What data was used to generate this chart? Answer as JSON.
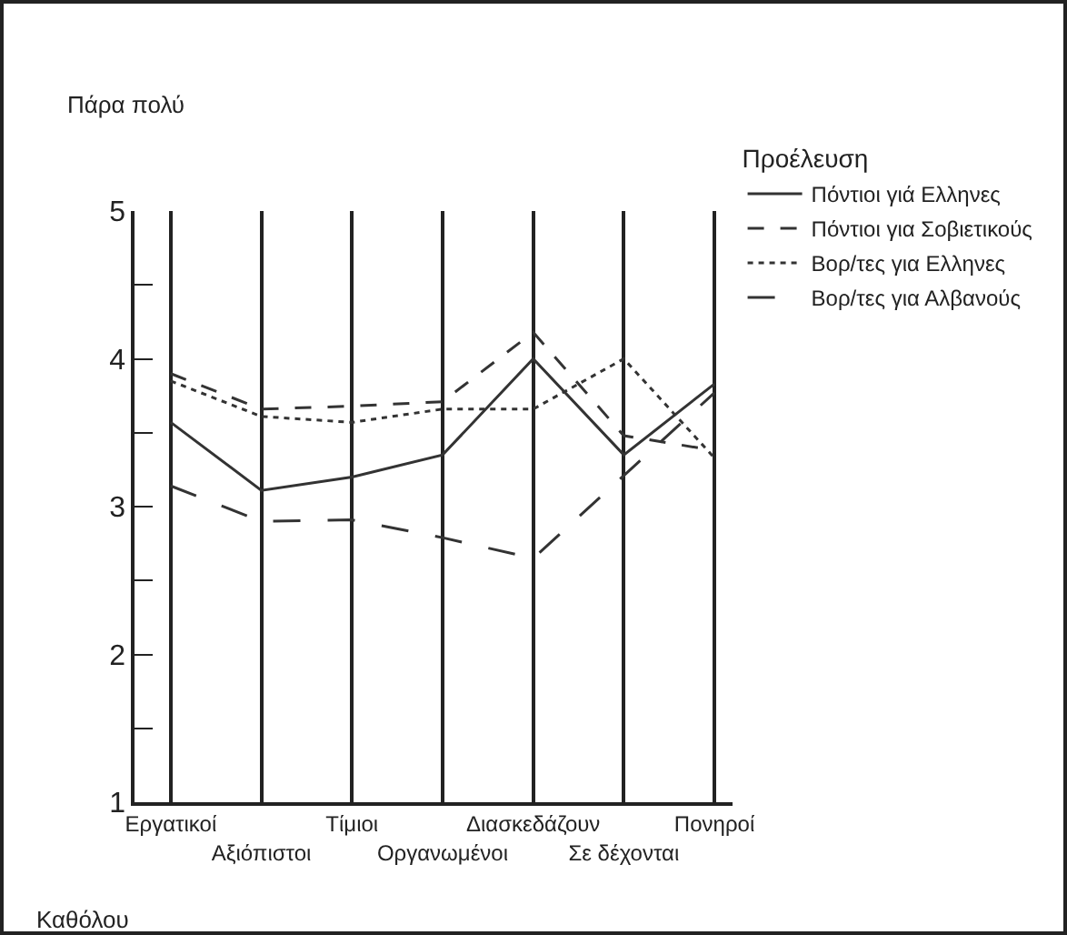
{
  "chart_data": {
    "type": "line",
    "legend_title": "Προέλευση",
    "annotations": [
      "Πάρα πολύ",
      "Καθόλου"
    ],
    "categories": [
      "Εργατικοί",
      "Αξιόπιστοι",
      "Τίμιοι",
      "Οργανωμένοι",
      "Διασκεδάζουν",
      "Σε δέχονται",
      "Πονηροί"
    ],
    "series": [
      {
        "name": "Πόντιοι γιά Ελληνες",
        "color": "#333333",
        "line_style": "solid",
        "values": [
          3.57,
          3.11,
          3.2,
          3.35,
          4.0,
          3.35,
          3.83
        ]
      },
      {
        "name": "Πόντιοι για Σοβιετικούς",
        "color": "#333333",
        "line_style": "dashed",
        "values": [
          3.9,
          3.66,
          3.68,
          3.71,
          4.18,
          3.48,
          3.38
        ]
      },
      {
        "name": "Βορ/τες για Ελληνες",
        "color": "#333333",
        "line_style": "dotted",
        "values": [
          3.85,
          3.61,
          3.57,
          3.66,
          3.66,
          4.0,
          3.33
        ]
      },
      {
        "name": "Βορ/τες για Αλβανούς",
        "color": "#333333",
        "line_style": "longdash",
        "values": [
          3.14,
          2.9,
          2.91,
          2.79,
          2.65,
          3.21,
          3.77
        ]
      }
    ],
    "ylim": [
      1,
      5
    ],
    "yticks": [
      1,
      {
        "value": 1.5,
        "label": null
      },
      2,
      {
        "value": 2.5,
        "label": null
      },
      3,
      {
        "value": 3.5,
        "label": null
      },
      4,
      {
        "value": 4.5,
        "label": null
      },
      5
    ],
    "grid": "x",
    "legend": "right",
    "marker": "none"
  }
}
